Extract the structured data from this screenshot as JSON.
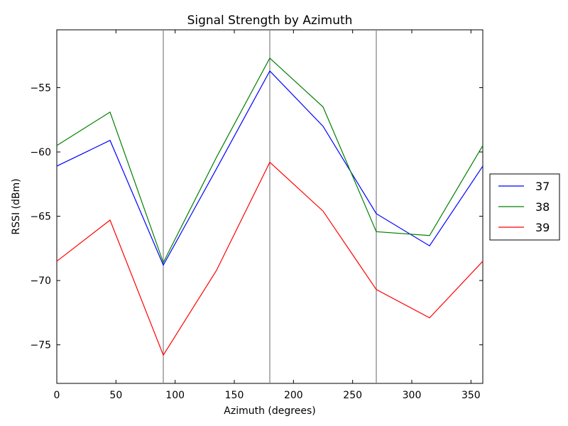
{
  "chart_data": {
    "type": "line",
    "title": "Signal Strength by Azimuth",
    "xlabel": "Azimuth (degrees)",
    "ylabel": "RSSI (dBm)",
    "xlim": [
      0,
      360
    ],
    "ylim": [
      -78,
      -50.5
    ],
    "xticks": [
      0,
      50,
      100,
      150,
      200,
      250,
      300,
      350
    ],
    "yticks": [
      -75,
      -70,
      -65,
      -60,
      -55
    ],
    "vlines": [
      90,
      180,
      270
    ],
    "vline_color": "#808080",
    "grid": false,
    "legend_position": "right-outside",
    "x": [
      0,
      45,
      90,
      135,
      180,
      225,
      270,
      315,
      360
    ],
    "series": [
      {
        "name": "37",
        "color": "#0000ff",
        "values": [
          -61.1,
          -59.1,
          -68.8,
          -61.3,
          -53.7,
          -58.0,
          -64.8,
          -67.3,
          -61.1
        ]
      },
      {
        "name": "38",
        "color": "#008000",
        "values": [
          -59.5,
          -56.9,
          -68.6,
          -60.4,
          -52.7,
          -56.5,
          -66.2,
          -66.5,
          -59.5
        ]
      },
      {
        "name": "39",
        "color": "#ff0000",
        "values": [
          -68.5,
          -65.3,
          -75.8,
          -69.2,
          -60.8,
          -64.6,
          -70.7,
          -72.9,
          -68.5
        ]
      }
    ]
  }
}
